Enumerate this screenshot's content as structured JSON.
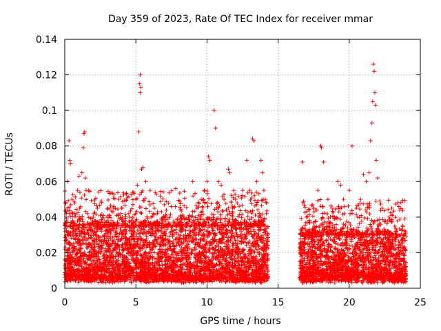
{
  "chart_data": {
    "type": "scatter",
    "title": "Day 359 of 2023, Rate Of TEC Index for receiver mmar",
    "xlabel": "GPS time / hours",
    "ylabel": "ROTI / TECUs",
    "xlim": [
      0,
      25
    ],
    "ylim": [
      0,
      0.14
    ],
    "xticks": [
      0,
      5,
      10,
      15,
      20,
      25
    ],
    "yticks": [
      0,
      0.02,
      0.04,
      0.06,
      0.08,
      0.1,
      0.12,
      0.14
    ],
    "xtick_labels": [
      "0",
      "5",
      "10",
      "15",
      "20",
      "25"
    ],
    "ytick_labels": [
      "0",
      "0.02",
      "0.04",
      "0.06",
      "0.08",
      "0.1",
      "0.12",
      "0.14"
    ],
    "grid": true,
    "marker": "+",
    "color": "#ff0000",
    "data_gap_hours": [
      14.3,
      16.5
    ],
    "series": [
      {
        "name": "ROTI",
        "points": [
          [
            0.2,
            0.06
          ],
          [
            0.3,
            0.083
          ],
          [
            0.35,
            0.072
          ],
          [
            0.4,
            0.07
          ],
          [
            0.5,
            0.05
          ],
          [
            0.7,
            0.048
          ],
          [
            0.9,
            0.055
          ],
          [
            1.0,
            0.063
          ],
          [
            1.2,
            0.065
          ],
          [
            1.3,
            0.079
          ],
          [
            1.35,
            0.087
          ],
          [
            1.4,
            0.088
          ],
          [
            1.45,
            0.062
          ],
          [
            1.5,
            0.055
          ],
          [
            1.6,
            0.042
          ],
          [
            2.0,
            0.04
          ],
          [
            2.3,
            0.045
          ],
          [
            2.5,
            0.041
          ],
          [
            3.0,
            0.045
          ],
          [
            3.3,
            0.038
          ],
          [
            3.8,
            0.05
          ],
          [
            4.0,
            0.045
          ],
          [
            4.5,
            0.042
          ],
          [
            4.8,
            0.047
          ],
          [
            5.0,
            0.05
          ],
          [
            5.1,
            0.058
          ],
          [
            5.2,
            0.088
          ],
          [
            5.25,
            0.115
          ],
          [
            5.3,
            0.12
          ],
          [
            5.35,
            0.113
          ],
          [
            5.3,
            0.11
          ],
          [
            5.4,
            0.067
          ],
          [
            5.5,
            0.068
          ],
          [
            5.7,
            0.06
          ],
          [
            6.0,
            0.055
          ],
          [
            6.3,
            0.045
          ],
          [
            6.5,
            0.042
          ],
          [
            7.0,
            0.04
          ],
          [
            7.5,
            0.032
          ],
          [
            7.8,
            0.056
          ],
          [
            8.0,
            0.03
          ],
          [
            8.5,
            0.035
          ],
          [
            8.7,
            0.04
          ],
          [
            9.0,
            0.06
          ],
          [
            9.3,
            0.045
          ],
          [
            9.6,
            0.05
          ],
          [
            9.8,
            0.055
          ],
          [
            10.0,
            0.06
          ],
          [
            10.1,
            0.074
          ],
          [
            10.2,
            0.072
          ],
          [
            10.5,
            0.1
          ],
          [
            10.6,
            0.09
          ],
          [
            10.8,
            0.06
          ],
          [
            11.0,
            0.058
          ],
          [
            11.2,
            0.05
          ],
          [
            11.5,
            0.067
          ],
          [
            11.6,
            0.065
          ],
          [
            11.8,
            0.045
          ],
          [
            12.0,
            0.05
          ],
          [
            12.5,
            0.055
          ],
          [
            12.8,
            0.072
          ],
          [
            13.0,
            0.055
          ],
          [
            13.2,
            0.084
          ],
          [
            13.3,
            0.083
          ],
          [
            13.5,
            0.06
          ],
          [
            13.8,
            0.072
          ],
          [
            13.9,
            0.065
          ],
          [
            14.0,
            0.055
          ],
          [
            14.1,
            0.05
          ],
          [
            16.7,
            0.071
          ],
          [
            17.0,
            0.04
          ],
          [
            17.5,
            0.045
          ],
          [
            17.8,
            0.055
          ],
          [
            18.0,
            0.08
          ],
          [
            18.05,
            0.079
          ],
          [
            18.2,
            0.071
          ],
          [
            18.5,
            0.05
          ],
          [
            18.8,
            0.045
          ],
          [
            19.2,
            0.06
          ],
          [
            19.4,
            0.058
          ],
          [
            19.6,
            0.05
          ],
          [
            20.0,
            0.055
          ],
          [
            20.2,
            0.08
          ],
          [
            20.5,
            0.045
          ],
          [
            20.8,
            0.05
          ],
          [
            21.0,
            0.064
          ],
          [
            21.2,
            0.06
          ],
          [
            21.4,
            0.065
          ],
          [
            21.5,
            0.083
          ],
          [
            21.6,
            0.093
          ],
          [
            21.65,
            0.105
          ],
          [
            21.7,
            0.126
          ],
          [
            21.75,
            0.122
          ],
          [
            21.8,
            0.11
          ],
          [
            21.85,
            0.103
          ],
          [
            21.9,
            0.072
          ],
          [
            22.0,
            0.062
          ],
          [
            22.3,
            0.045
          ],
          [
            22.8,
            0.04
          ],
          [
            23.3,
            0.03
          ],
          [
            23.8,
            0.028
          ]
        ],
        "baseline_bands": [
          {
            "x_from": 0.0,
            "x_to": 14.3,
            "y_from": 0.003,
            "y_to": 0.035
          },
          {
            "x_from": 16.5,
            "x_to": 24.0,
            "y_from": 0.003,
            "y_to": 0.03
          }
        ]
      }
    ]
  }
}
